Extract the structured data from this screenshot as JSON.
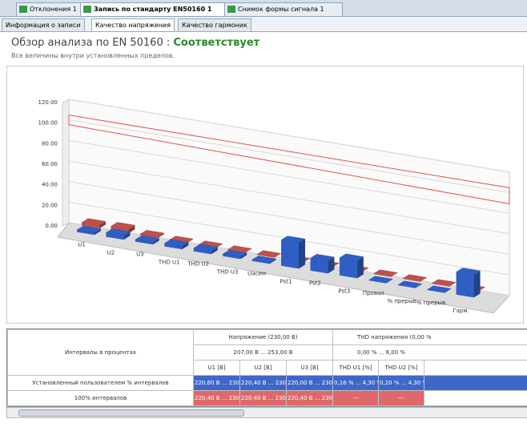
{
  "tabs": [
    "Отклонения 1",
    "Запись по стандарту EN50160 1",
    "Снимок формы сигнала 1"
  ],
  "subtabs": [
    "Информация о записи",
    "Качество напряжения",
    "Качество гармоник"
  ],
  "heading": {
    "title": "Обзор анализа по EN 50160 :",
    "status": "Соответствует",
    "subtitle": "Все величины внутри установленных пределов."
  },
  "chart_data": {
    "type": "bar3d",
    "categories": [
      "U1",
      "U2",
      "U3",
      "THD U1",
      "THD U2",
      "THD U3",
      "Uасим",
      "Pst1",
      "Pst2",
      "Pst3",
      "Провал",
      "% прерыв.",
      "% прерыв.",
      "Гарм."
    ],
    "series": [
      {
        "color": "#c0504d",
        "values": [
          3,
          4,
          1,
          0,
          0,
          0,
          0,
          0,
          0,
          0,
          0,
          0,
          0,
          0
        ]
      },
      {
        "color": "#2f5fc4",
        "values": [
          2,
          4,
          2,
          3,
          3,
          2,
          1,
          25,
          12,
          17,
          0,
          0,
          0,
          22
        ]
      }
    ],
    "limit": 100,
    "limit_color": "#e05050",
    "ylim": [
      0,
      120
    ],
    "yticks": [
      {
        "value": 0,
        "label": "0.00"
      },
      {
        "value": 20,
        "label": "20.00"
      },
      {
        "value": 40,
        "label": "40.00"
      },
      {
        "value": 60,
        "label": "60.00"
      },
      {
        "value": 80,
        "label": "80.00"
      },
      {
        "value": 100,
        "label": "100.00"
      },
      {
        "value": 120,
        "label": "120.00"
      }
    ],
    "grid": true
  },
  "table": {
    "row_header": "Интервалы в процентах",
    "groups": [
      {
        "name": "Напряжение (230,00 В)",
        "range": "207,00 В ... 253,00 В"
      },
      {
        "name": "THD напряжения (0,00 %",
        "range": "0,00 % ... 8,00 %"
      }
    ],
    "columns": [
      "U1 [В]",
      "U2 [В]",
      "U3 [В]",
      "THD U1 [%]",
      "THD U2 [%]"
    ],
    "rows": [
      {
        "label": "Установленный пользователем % интервалов",
        "cells": [
          "220,60 В ... 230,00 В",
          "220,40 В ... 230,20 В",
          "220,00 В ... 230,00 В",
          "0,16 % ... 4,30 %",
          "0,20 % ... 4,30 %"
        ]
      },
      {
        "label": "100% интервалов",
        "cells": [
          "220,40 В ... 230,60 В",
          "220,40 В ... 230,40 В",
          "220,40 В ... 230,00 В",
          "---",
          "---"
        ]
      }
    ]
  }
}
